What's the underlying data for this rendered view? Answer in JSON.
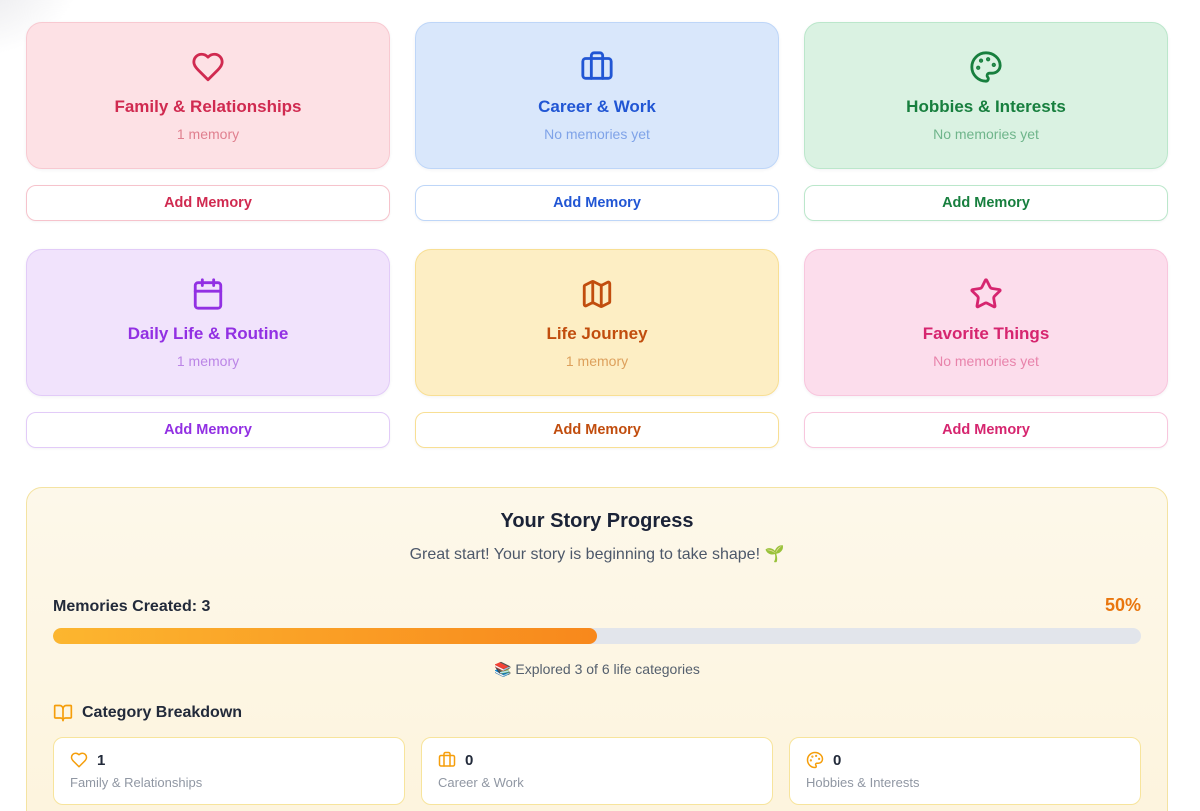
{
  "ui": {
    "add_memory_label": "Add Memory"
  },
  "categories": [
    {
      "name": "Family & Relationships",
      "status": "1 memory",
      "icon": "heart",
      "colors": {
        "bg": "#fde1e5",
        "border": "#f8c9d1",
        "accent": "#d02a50",
        "muted": "#e0808f",
        "button_border": "#f6c3cc"
      }
    },
    {
      "name": "Career & Work",
      "status": "No memories yet",
      "icon": "briefcase",
      "colors": {
        "bg": "#d9e7fb",
        "border": "#bed6f8",
        "accent": "#2156d4",
        "muted": "#7fa3e8",
        "button_border": "#bed6f8"
      }
    },
    {
      "name": "Hobbies & Interests",
      "status": "No memories yet",
      "icon": "palette",
      "colors": {
        "bg": "#daf2e2",
        "border": "#bbe7cb",
        "accent": "#177f3e",
        "muted": "#6fb58b",
        "button_border": "#bbe7cb"
      }
    },
    {
      "name": "Daily Life & Routine",
      "status": "1 memory",
      "icon": "calendar",
      "colors": {
        "bg": "#f1e3fc",
        "border": "#e2cbf8",
        "accent": "#9230e3",
        "muted": "#bb85e6",
        "button_border": "#e2cbf8"
      }
    },
    {
      "name": "Life Journey",
      "status": "1 memory",
      "icon": "map",
      "colors": {
        "bg": "#fdeec4",
        "border": "#f8df94",
        "accent": "#c14d0e",
        "muted": "#dda05c",
        "button_border": "#f8df94"
      }
    },
    {
      "name": "Favorite Things",
      "status": "No memories yet",
      "icon": "star",
      "colors": {
        "bg": "#fcddec",
        "border": "#f8c6dd",
        "accent": "#d6256f",
        "muted": "#e883ab",
        "button_border": "#f8c6dd"
      }
    }
  ],
  "progress": {
    "title": "Your Story Progress",
    "subtitle": "Great start! Your story is beginning to take shape! 🌱",
    "memories_label": "Memories Created: 3",
    "percent": 50,
    "percent_label": "50%",
    "explored_label": "📚 Explored 3 of 6 life categories",
    "panel_colors": {
      "bg": "#fdf6e3",
      "border": "#f4e3a2",
      "bar_track": "#e2e5eb",
      "bar_fill_start": "#fcb62f",
      "bar_fill_end": "#f8881c",
      "percent_color": "#e9760e",
      "icon_color": "#f59e0b"
    },
    "breakdown": {
      "title": "Category Breakdown",
      "items": [
        {
          "count": "1",
          "label": "Family & Relationships",
          "icon": "heart"
        },
        {
          "count": "0",
          "label": "Career & Work",
          "icon": "briefcase"
        },
        {
          "count": "0",
          "label": "Hobbies & Interests",
          "icon": "palette"
        }
      ]
    }
  }
}
